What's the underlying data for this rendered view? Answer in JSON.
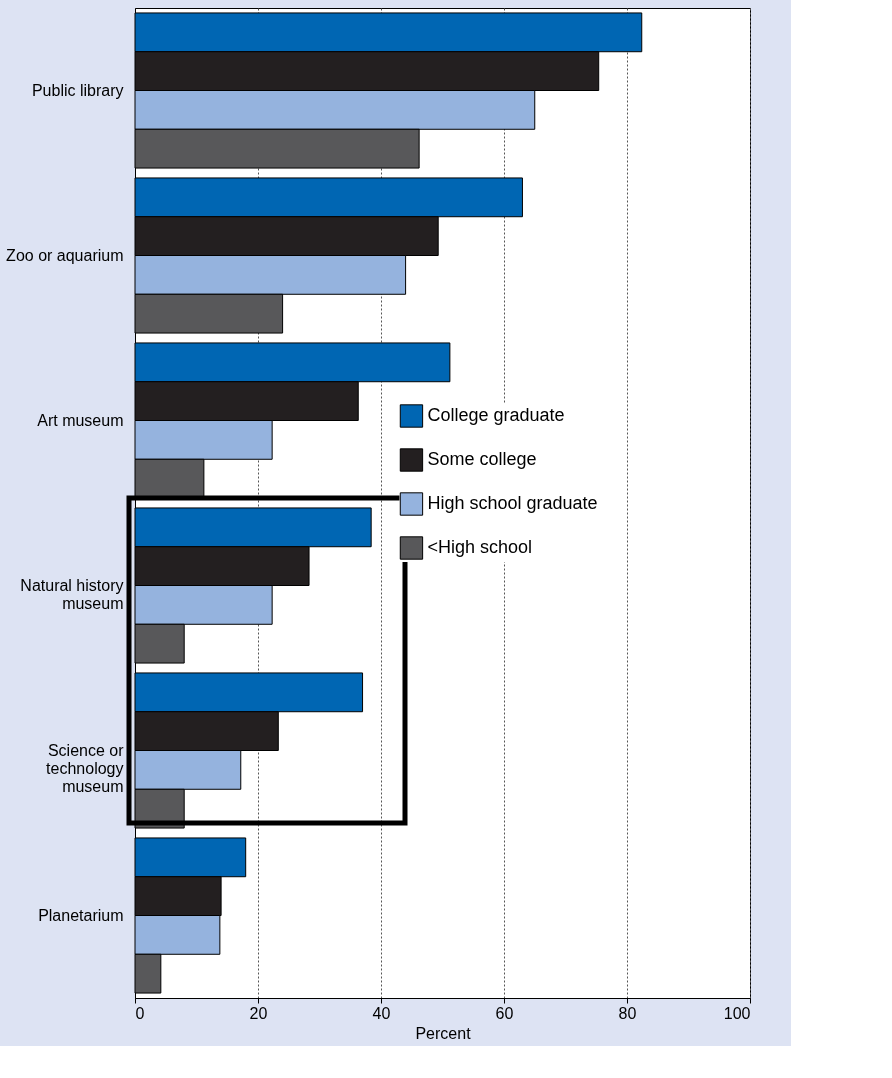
{
  "chart_data": {
    "type": "bar",
    "orientation": "horizontal",
    "xlabel": "Percent",
    "categories": [
      "Public library",
      "Zoo or aquarium",
      "Art museum",
      "Natural history museum",
      "Science or technology museum",
      "Planetarium"
    ],
    "series": [
      {
        "name": "College graduate",
        "color": "#0066b3",
        "values": [
          82.4,
          63,
          51.2,
          38.4,
          37,
          18
        ]
      },
      {
        "name": "Some college",
        "color": "#231f20",
        "values": [
          75.4,
          49.3,
          36.3,
          28.3,
          23.3,
          14
        ]
      },
      {
        "name": "High school graduate",
        "color": "#95b3de",
        "values": [
          65,
          44,
          22.3,
          22.3,
          17.2,
          13.8
        ]
      },
      {
        "name": "<High school",
        "color": "#58585a",
        "values": [
          46.2,
          24,
          11.2,
          8,
          8,
          4.2
        ]
      }
    ],
    "xlim": [
      0,
      100
    ],
    "xticks": [
      0,
      20,
      40,
      60,
      80,
      100
    ],
    "grid": "x",
    "legend": "right"
  }
}
